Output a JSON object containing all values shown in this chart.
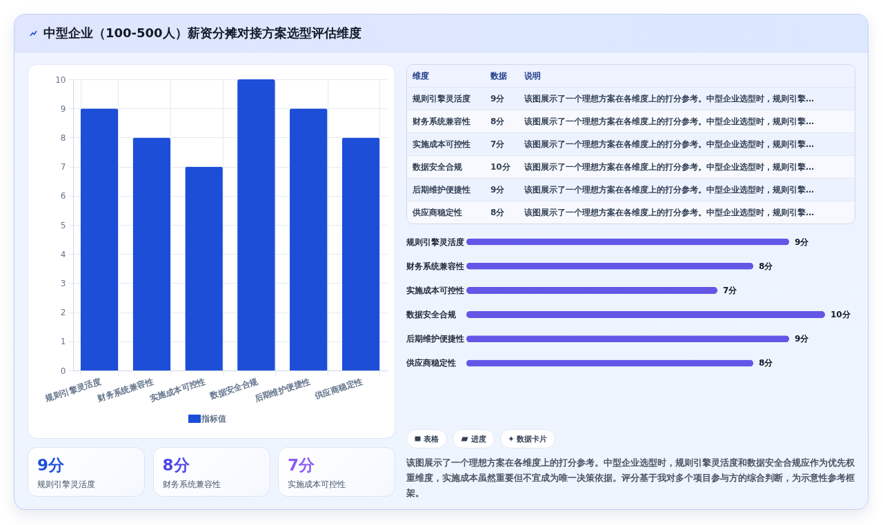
{
  "chart_data": [
    {
      "type": "other",
      "title": "中型企业（100-500人）薪资分摊对接方案选型评估维度"
    },
    {
      "type": "bar",
      "categories": [
        "规则引擎灵活度",
        "财务系统兼容性",
        "实施成本可控性",
        "数据安全合规",
        "后期维护便捷性",
        "供应商稳定性"
      ],
      "series": [
        {
          "name": "指标值",
          "color": "#1d4ed8",
          "values": [
            9,
            8,
            7,
            10,
            9,
            8
          ]
        }
      ],
      "ylim": [
        0,
        10
      ],
      "yticks": [
        0,
        1,
        2,
        3,
        4,
        5,
        6,
        7,
        8,
        9,
        10
      ],
      "grid": true,
      "legend": "bottom"
    },
    {
      "type": "other",
      "annotations": [
        "9分",
        "规则引擎灵活度",
        "8分",
        "财务系统兼容性",
        "7分",
        "实施成本可控性"
      ]
    },
    {
      "type": "other",
      "annotations": [
        "维度",
        "数据",
        "说明",
        "规则引擎灵活度",
        "9分",
        "该图展示了一个理想方案在各维度上的打分参考。中型企业选型时，规则引擎…",
        "财务系统兼容性",
        "8分",
        "该图展示了一个理想方案在各维度上的打分参考。中型企业选型时，规则引擎…",
        "实施成本可控性",
        "7分",
        "该图展示了一个理想方案在各维度上的打分参考。中型企业选型时，规则引擎…",
        "数据安全合规",
        "10分",
        "该图展示了一个理想方案在各维度上的打分参考。中型企业选型时，规则引擎…",
        "后期维护便捷性",
        "9分",
        "该图展示了一个理想方案在各维度上的打分参考。中型企业选型时，规则引擎…",
        "供应商稳定性",
        "8分",
        "该图展示了一个理想方案在各维度上的打分参考。中型企业选型时，规则引擎…"
      ]
    },
    {
      "type": "bar",
      "orientation": "horizontal",
      "categories": [
        "规则引擎灵活度",
        "财务系统兼容性",
        "实施成本可控性",
        "数据安全合规",
        "后期维护便捷性",
        "供应商稳定性"
      ],
      "values": [
        9,
        8,
        7,
        10,
        9,
        8
      ],
      "color": "#6257e6",
      "value_labels": [
        "9分",
        "8分",
        "7分",
        "10分",
        "9分",
        "8分"
      ],
      "tick_labels": "y"
    },
    {
      "type": "other",
      "annotations": [
        "表格",
        "进度",
        "数据卡片",
        "该图展示了一个理想方案在各维度上的打分参考。中型企业选型时，规则引擎灵活度和数据安全合规应作为优先权重维度，实施成本虽然重要但不宜成为唯一决策依据。评分基于我对多个项目参与方的综合判断，为示意性参考框架。"
      ]
    }
  ]
}
